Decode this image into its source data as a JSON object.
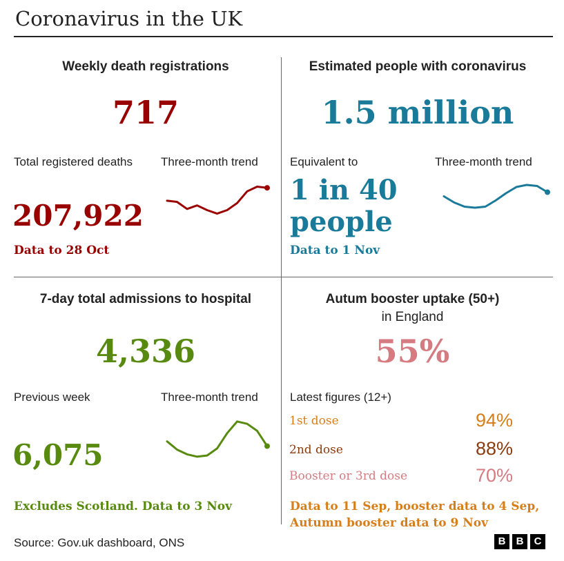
{
  "page": {
    "title": "Coronavirus in the UK",
    "source": "Source: Gov.uk dashboard, ONS"
  },
  "deaths": {
    "heading": "Weekly death registrations",
    "value": "717",
    "total_label": "Total registered deaths",
    "trend_label": "Three-month trend",
    "total_value": "207,922",
    "note": "Data to 28 Oct",
    "color": "#990000",
    "trend": [
      28,
      27,
      21,
      24,
      20,
      17,
      20,
      26,
      36,
      40,
      39
    ]
  },
  "infections": {
    "heading": "Estimated people with coronavirus",
    "value": "1.5 million",
    "equiv_label": "Equivalent to",
    "trend_label": "Three-month trend",
    "equiv_line1": "1 in 40",
    "equiv_line2": "people",
    "note": "Data to 1 Nov",
    "color": "#1a7a99",
    "trend": [
      30,
      24,
      20,
      19,
      20,
      26,
      33,
      39,
      41,
      40,
      34
    ]
  },
  "hospital": {
    "heading": "7-day total admissions to hospital",
    "value": "4,336",
    "prev_label": "Previous week",
    "trend_label": "Three-month trend",
    "prev_value": "6,075",
    "note": "Excludes Scotland. Data to 3 Nov",
    "color": "#588a0f",
    "trend": [
      24,
      17,
      13,
      11,
      12,
      18,
      31,
      41,
      39,
      33,
      20
    ]
  },
  "booster": {
    "heading": "Autum booster uptake (50+)",
    "subheading": "in England",
    "value": "55%",
    "latest_label": "Latest figures (12+)",
    "doses": [
      {
        "label": "1st dose",
        "value": "94%",
        "color": "#d67e19"
      },
      {
        "label": "2nd dose",
        "value": "88%",
        "color": "#8a3c0e"
      },
      {
        "label": "Booster or 3rd dose",
        "value": "70%",
        "color": "#d47c81"
      }
    ],
    "note_line1": "Data to 11 Sep, booster data to 4 Sep,",
    "note_line2": "Autumn booster data to 9 Nov",
    "color": "#d47c81"
  },
  "logo": [
    "B",
    "B",
    "C"
  ]
}
